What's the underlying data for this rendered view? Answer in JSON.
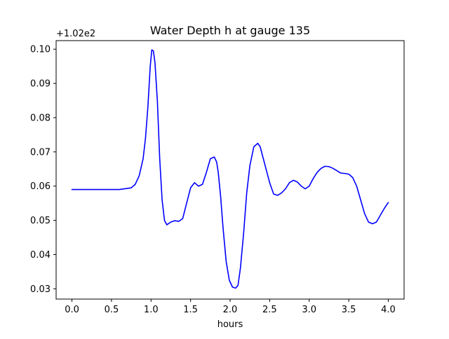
{
  "chart_data": {
    "type": "line",
    "title": "Water Depth h at gauge 135",
    "xlabel": "hours",
    "ylabel": "",
    "y_offset_label": "+1.02e2",
    "y_offset": 102,
    "xlim": [
      -0.2,
      4.2
    ],
    "ylim": [
      0.027,
      0.1025
    ],
    "xticks": [
      0.0,
      0.5,
      1.0,
      1.5,
      2.0,
      2.5,
      3.0,
      3.5,
      4.0
    ],
    "xtick_labels": [
      "0.0",
      "0.5",
      "1.0",
      "1.5",
      "2.0",
      "2.5",
      "3.0",
      "3.5",
      "4.0"
    ],
    "yticks": [
      0.03,
      0.04,
      0.05,
      0.06,
      0.07,
      0.08,
      0.09,
      0.1
    ],
    "ytick_labels": [
      "0.03",
      "0.04",
      "0.05",
      "0.06",
      "0.07",
      "0.08",
      "0.09",
      "0.10"
    ],
    "grid": false,
    "legend": "none",
    "series": [
      {
        "color": "#0000ff",
        "x": [
          0.0,
          0.2,
          0.4,
          0.6,
          0.75,
          0.8,
          0.85,
          0.9,
          0.93,
          0.96,
          0.99,
          1.01,
          1.03,
          1.05,
          1.08,
          1.11,
          1.14,
          1.17,
          1.2,
          1.25,
          1.3,
          1.35,
          1.4,
          1.45,
          1.5,
          1.55,
          1.6,
          1.65,
          1.7,
          1.75,
          1.8,
          1.83,
          1.85,
          1.88,
          1.91,
          1.95,
          1.99,
          2.03,
          2.07,
          2.1,
          2.13,
          2.17,
          2.21,
          2.25,
          2.3,
          2.35,
          2.38,
          2.42,
          2.46,
          2.5,
          2.55,
          2.6,
          2.65,
          2.7,
          2.75,
          2.8,
          2.85,
          2.9,
          2.95,
          3.0,
          3.05,
          3.1,
          3.15,
          3.2,
          3.25,
          3.3,
          3.35,
          3.4,
          3.45,
          3.5,
          3.55,
          3.6,
          3.65,
          3.7,
          3.75,
          3.8,
          3.85,
          3.9,
          3.95,
          4.0
        ],
        "y": [
          0.059,
          0.059,
          0.059,
          0.059,
          0.0595,
          0.0605,
          0.063,
          0.068,
          0.074,
          0.083,
          0.095,
          0.0998,
          0.0995,
          0.096,
          0.085,
          0.068,
          0.056,
          0.05,
          0.0487,
          0.0495,
          0.0499,
          0.0497,
          0.0505,
          0.055,
          0.0595,
          0.061,
          0.06,
          0.0605,
          0.064,
          0.068,
          0.0685,
          0.067,
          0.064,
          0.057,
          0.048,
          0.038,
          0.0325,
          0.0305,
          0.0302,
          0.031,
          0.036,
          0.046,
          0.058,
          0.066,
          0.0715,
          0.0725,
          0.0715,
          0.068,
          0.0645,
          0.061,
          0.0577,
          0.0573,
          0.058,
          0.0592,
          0.061,
          0.0617,
          0.0612,
          0.06,
          0.0592,
          0.06,
          0.0622,
          0.064,
          0.0652,
          0.0658,
          0.0657,
          0.0652,
          0.0645,
          0.0638,
          0.0637,
          0.0635,
          0.0625,
          0.06,
          0.056,
          0.052,
          0.0495,
          0.049,
          0.0495,
          0.0515,
          0.0535,
          0.0552
        ]
      }
    ]
  }
}
